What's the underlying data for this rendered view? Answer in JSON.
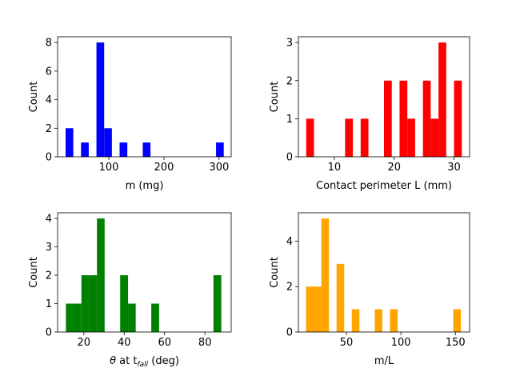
{
  "chart_data": [
    {
      "type": "histogram",
      "color": "#0000ff",
      "xlabel": "m (mg)",
      "ylabel": "Count",
      "xlim": [
        7,
        322
      ],
      "ylim": [
        0,
        8.4
      ],
      "xticks": [
        100,
        200,
        300
      ],
      "yticks": [
        0,
        2,
        4,
        6,
        8
      ],
      "bins": [
        {
          "start": 21.5,
          "end": 35.5,
          "count": 2
        },
        {
          "start": 49.5,
          "end": 63.5,
          "count": 1
        },
        {
          "start": 77.5,
          "end": 91.5,
          "count": 8
        },
        {
          "start": 91.5,
          "end": 105.5,
          "count": 2
        },
        {
          "start": 119.5,
          "end": 133.5,
          "count": 1
        },
        {
          "start": 161.5,
          "end": 175.5,
          "count": 1
        },
        {
          "start": 294.5,
          "end": 308.5,
          "count": 1
        }
      ]
    },
    {
      "type": "histogram",
      "color": "#ff0000",
      "xlabel": "Contact perimeter L (mm)",
      "ylabel": "Count",
      "xlim": [
        4,
        32.6
      ],
      "ylim": [
        0,
        3.15
      ],
      "xticks": [
        10,
        20,
        30
      ],
      "yticks": [
        0,
        1,
        2,
        3
      ],
      "bins": [
        {
          "start": 5.3,
          "end": 6.6,
          "count": 1
        },
        {
          "start": 11.8,
          "end": 13.1,
          "count": 1
        },
        {
          "start": 14.4,
          "end": 15.7,
          "count": 1
        },
        {
          "start": 18.3,
          "end": 19.6,
          "count": 2
        },
        {
          "start": 20.9,
          "end": 22.2,
          "count": 2
        },
        {
          "start": 22.2,
          "end": 23.5,
          "count": 1
        },
        {
          "start": 24.8,
          "end": 26.1,
          "count": 2
        },
        {
          "start": 26.1,
          "end": 27.4,
          "count": 1
        },
        {
          "start": 27.4,
          "end": 28.7,
          "count": 3
        },
        {
          "start": 30.0,
          "end": 31.3,
          "count": 2
        }
      ]
    },
    {
      "type": "histogram",
      "color": "#008000",
      "xlabel_prefix": "θ",
      "xlabel_mid": " at t",
      "xlabel_sub": "fall",
      "xlabel_suffix": " (deg)",
      "ylabel": "Count",
      "xlim": [
        7,
        93
      ],
      "ylim": [
        0,
        4.2
      ],
      "xticks": [
        20,
        40,
        60,
        80
      ],
      "yticks": [
        0,
        1,
        2,
        3,
        4
      ],
      "bins": [
        {
          "start": 11.1,
          "end": 14.9,
          "count": 1
        },
        {
          "start": 14.9,
          "end": 18.8,
          "count": 1
        },
        {
          "start": 18.8,
          "end": 22.6,
          "count": 2
        },
        {
          "start": 22.6,
          "end": 26.5,
          "count": 2
        },
        {
          "start": 26.5,
          "end": 30.3,
          "count": 4
        },
        {
          "start": 38.0,
          "end": 41.9,
          "count": 2
        },
        {
          "start": 41.9,
          "end": 45.7,
          "count": 1
        },
        {
          "start": 53.4,
          "end": 57.3,
          "count": 1
        },
        {
          "start": 84.2,
          "end": 88.1,
          "count": 2
        }
      ]
    },
    {
      "type": "histogram",
      "color": "#ffa500",
      "xlabel": "m/L",
      "ylabel": "Count",
      "xlim": [
        6,
        163
      ],
      "ylim": [
        0,
        5.25
      ],
      "xticks": [
        50,
        100,
        150
      ],
      "yticks": [
        0,
        2,
        4
      ],
      "bins": [
        {
          "start": 13,
          "end": 20,
          "count": 2
        },
        {
          "start": 20,
          "end": 27,
          "count": 2
        },
        {
          "start": 27,
          "end": 34,
          "count": 5
        },
        {
          "start": 41,
          "end": 48,
          "count": 3
        },
        {
          "start": 55,
          "end": 62,
          "count": 1
        },
        {
          "start": 76,
          "end": 83,
          "count": 1
        },
        {
          "start": 90,
          "end": 97,
          "count": 1
        },
        {
          "start": 148,
          "end": 155,
          "count": 1
        }
      ]
    }
  ]
}
